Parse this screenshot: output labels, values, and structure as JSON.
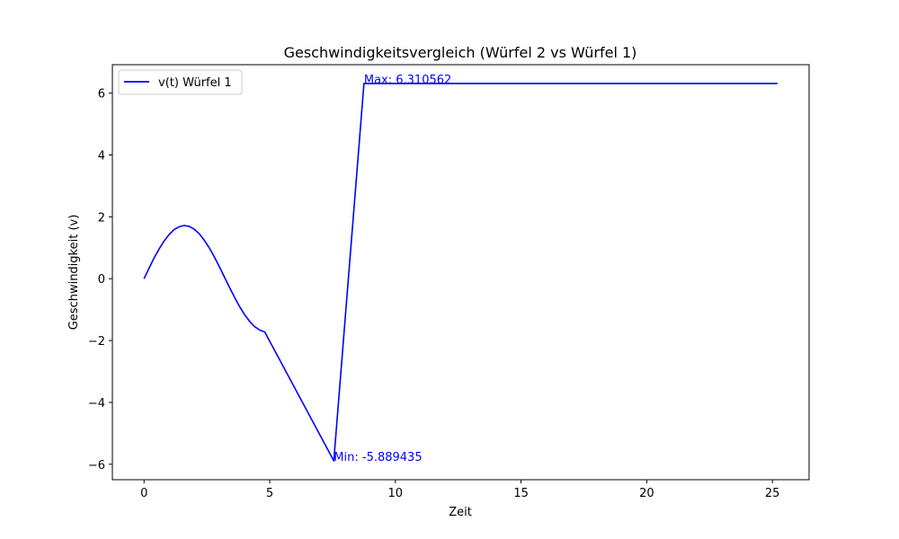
{
  "chart_data": {
    "type": "line",
    "title": "Geschwindigkeitsvergleich (Würfel 2 vs Würfel 1)",
    "xlabel": "Zeit",
    "ylabel": "Geschwindigkeit (v)",
    "xlim": [
      -1.26,
      26.46
    ],
    "ylim": [
      -6.5,
      6.92
    ],
    "xticks": [
      0,
      5,
      10,
      15,
      20,
      25
    ],
    "yticks": [
      -6,
      -4,
      -2,
      0,
      2,
      4,
      6
    ],
    "xtick_labels": [
      "0",
      "5",
      "10",
      "15",
      "20",
      "25"
    ],
    "ytick_labels": [
      "−6",
      "−4",
      "−2",
      "0",
      "2",
      "4",
      "6"
    ],
    "grid": false,
    "legend_position": "upper-left",
    "series": [
      {
        "name": "v(t) Würfel 1",
        "color": "#0000ff",
        "x": [
          0,
          0.2,
          0.4,
          0.6,
          0.8,
          1.0,
          1.2,
          1.4,
          1.6,
          1.8,
          2.0,
          2.2,
          2.4,
          2.6,
          2.8,
          3.0,
          3.2,
          3.4,
          3.6,
          3.8,
          4.0,
          4.2,
          4.4,
          4.6,
          4.8,
          7.55,
          8.75,
          25.2
        ],
        "y": [
          0,
          0.34,
          0.67,
          0.96,
          1.22,
          1.43,
          1.59,
          1.68,
          1.72,
          1.69,
          1.6,
          1.45,
          1.24,
          0.99,
          0.7,
          0.38,
          0.05,
          -0.28,
          -0.6,
          -0.9,
          -1.16,
          -1.38,
          -1.55,
          -1.66,
          -1.72,
          -5.889435,
          6.310562,
          6.310562
        ]
      }
    ],
    "annotations": [
      {
        "text": "Max: 6.310562",
        "x": 8.75,
        "y": 6.310562
      },
      {
        "text": "Min: -5.889435",
        "x": 7.55,
        "y": -5.889435
      }
    ]
  }
}
